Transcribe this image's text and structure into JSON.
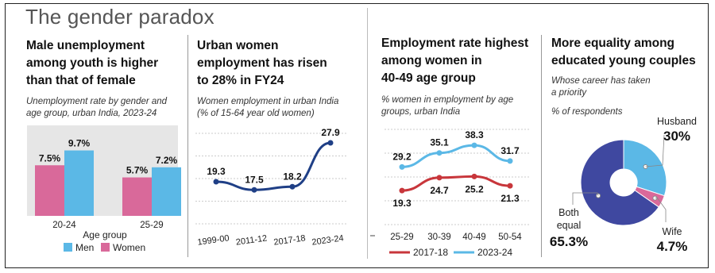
{
  "title": "The gender paradox",
  "colors": {
    "men": "#5bb8e6",
    "women": "#d9699a",
    "line_blue": "#1f3f86",
    "line_red": "#c8363b",
    "line_light": "#5bb8e6",
    "pie_husband": "#5bb8e6",
    "pie_wife": "#d9699a",
    "pie_both": "#3f48a0"
  },
  "panel1": {
    "title": [
      "Male unemployment",
      "among youth is higher",
      "than that of female"
    ],
    "subtitle": [
      "Unemployment rate by gender and",
      "age group, urban India, 2023-24"
    ]
  },
  "panel2": {
    "title": [
      "Urban women",
      "employment has risen",
      "to 28% in FY24"
    ],
    "subtitle": [
      "Women employment in urban India",
      "(% of 15-64 year old women)"
    ]
  },
  "panel3": {
    "title": [
      "Employment rate highest",
      "among women in",
      "40-49 age group"
    ],
    "subtitle": [
      "% women in employment by age",
      "groups, urban India"
    ]
  },
  "panel4": {
    "title": [
      "More equality among",
      "educated young couples"
    ],
    "subtitle": [
      "Whose career has taken",
      "a priority"
    ],
    "note": "% of respondents"
  },
  "chart_data": [
    {
      "type": "bar",
      "categories": [
        "20-24",
        "25-29"
      ],
      "series": [
        {
          "name": "Men",
          "values": [
            9.7,
            7.2
          ],
          "labels": [
            "9.7%",
            "7.2%"
          ]
        },
        {
          "name": "Women",
          "values": [
            7.5,
            5.7
          ],
          "labels": [
            "7.5%",
            "5.7%"
          ]
        }
      ],
      "xlabel": "Age group",
      "legend": [
        "Men",
        "Women"
      ],
      "legend_position": "bottom",
      "ylim": [
        0,
        12
      ]
    },
    {
      "type": "line",
      "x": [
        "1999-00",
        "2011-12",
        "2017-18",
        "2023-24"
      ],
      "series": [
        {
          "values": [
            19.3,
            17.5,
            18.2,
            27.9
          ],
          "labels": [
            "19.3",
            "17.5",
            "18.2",
            "27.9"
          ]
        }
      ],
      "ylim": [
        10,
        30
      ],
      "grid": true
    },
    {
      "type": "line",
      "x": [
        "25-29",
        "30-39",
        "40-49",
        "50-54"
      ],
      "series": [
        {
          "name": "2017-18",
          "values": [
            19.3,
            24.7,
            25.2,
            21.3
          ],
          "labels": [
            "19.3",
            "24.7",
            "25.2",
            "21.3"
          ]
        },
        {
          "name": "2023-24",
          "values": [
            29.2,
            35.1,
            38.3,
            31.7
          ],
          "labels": [
            "29.2",
            "35.1",
            "38.3",
            "31.7"
          ]
        }
      ],
      "ylim": [
        5,
        45
      ],
      "grid": true,
      "legend_position": "bottom"
    },
    {
      "type": "pie",
      "slices": [
        {
          "name": "Husband",
          "value": 30,
          "label": "30%"
        },
        {
          "name": "Wife",
          "value": 4.7,
          "label": "4.7%"
        },
        {
          "name": "Both equal",
          "value": 65.3,
          "label": "65.3%"
        }
      ]
    }
  ]
}
